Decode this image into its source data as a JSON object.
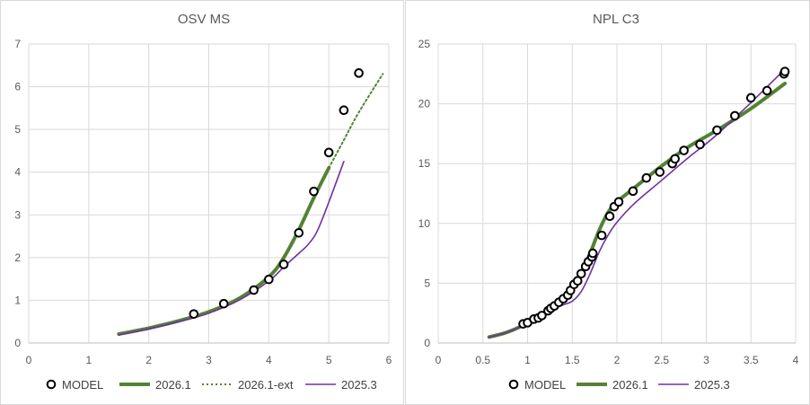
{
  "colors": {
    "model": "#000000",
    "c2026": "#548235",
    "c2025": "#7030a0",
    "grid": "#d9d9d9",
    "axis": "#bfbfbf",
    "text": "#595959"
  },
  "chart_data": [
    {
      "type": "scatter",
      "title": "OSV MS",
      "xlim": [
        0,
        6
      ],
      "ylim": [
        0,
        7
      ],
      "xticks": [
        "0",
        "1",
        "2",
        "3",
        "4",
        "5",
        "6"
      ],
      "yticks": [
        "0",
        "1",
        "2",
        "3",
        "4",
        "5",
        "6",
        "7"
      ],
      "grid": true,
      "legend": "bottom",
      "series": [
        {
          "name": "MODEL",
          "style": "marker",
          "x": [
            2.75,
            3.25,
            3.75,
            4.0,
            4.25,
            4.5,
            4.75,
            5.0,
            5.25,
            5.5
          ],
          "y": [
            0.68,
            0.92,
            1.24,
            1.49,
            1.84,
            2.58,
            3.55,
            4.46,
            5.45,
            6.32
          ]
        },
        {
          "name": "2026.1",
          "style": "thick",
          "x": [
            1.5,
            2.0,
            2.5,
            3.0,
            3.5,
            4.0,
            4.25,
            4.5,
            4.75,
            5.0
          ],
          "y": [
            0.21,
            0.35,
            0.52,
            0.73,
            1.04,
            1.55,
            2.0,
            2.65,
            3.4,
            4.1
          ]
        },
        {
          "name": "2026.1-ext",
          "style": "dotted",
          "x": [
            5.0,
            5.25,
            5.5,
            5.9
          ],
          "y": [
            4.1,
            4.75,
            5.4,
            6.3
          ]
        },
        {
          "name": "2025.3",
          "style": "thin",
          "x": [
            1.5,
            2.0,
            2.5,
            3.0,
            3.5,
            4.0,
            4.25,
            4.5,
            4.65,
            4.8,
            5.0,
            5.25
          ],
          "y": [
            0.19,
            0.33,
            0.5,
            0.7,
            1.0,
            1.45,
            1.78,
            2.1,
            2.3,
            2.6,
            3.3,
            4.25
          ]
        }
      ]
    },
    {
      "type": "scatter",
      "title": "NPL C3",
      "xlim": [
        0,
        4
      ],
      "ylim": [
        0,
        25
      ],
      "xticks": [
        "0",
        "0.5",
        "1",
        "1.5",
        "2",
        "2.5",
        "3",
        "3.5",
        "4"
      ],
      "yticks": [
        "0",
        "5",
        "10",
        "15",
        "20",
        "25"
      ],
      "grid": true,
      "legend": "bottom",
      "series": [
        {
          "name": "MODEL",
          "style": "marker",
          "x": [
            0.95,
            1.0,
            1.07,
            1.12,
            1.16,
            1.23,
            1.26,
            1.3,
            1.35,
            1.4,
            1.45,
            1.48,
            1.52,
            1.56,
            1.6,
            1.65,
            1.68,
            1.72,
            1.73,
            1.83,
            1.92,
            1.97,
            2.02,
            2.18,
            2.33,
            2.48,
            2.62,
            2.65,
            2.75,
            2.93,
            3.12,
            3.32,
            3.5,
            3.68,
            3.87,
            3.88
          ],
          "y": [
            1.6,
            1.7,
            2.0,
            2.1,
            2.3,
            2.7,
            2.9,
            3.1,
            3.4,
            3.7,
            4.0,
            4.4,
            4.9,
            5.2,
            5.8,
            6.4,
            6.8,
            7.2,
            7.5,
            9.0,
            10.6,
            11.4,
            11.8,
            12.7,
            13.8,
            14.3,
            15.0,
            15.4,
            16.1,
            16.6,
            17.8,
            19.0,
            20.5,
            21.1,
            22.5,
            22.7
          ]
        },
        {
          "name": "2026.1",
          "style": "thick",
          "x": [
            0.57,
            0.75,
            0.9,
            1.0,
            1.1,
            1.2,
            1.3,
            1.4,
            1.5,
            1.6,
            1.7,
            1.8,
            1.9,
            2.0,
            2.2,
            2.5,
            2.8,
            3.1,
            3.5,
            3.88
          ],
          "y": [
            0.5,
            0.85,
            1.3,
            1.7,
            2.1,
            2.5,
            3.0,
            3.6,
            4.5,
            5.8,
            7.5,
            9.4,
            10.9,
            11.8,
            13.0,
            14.8,
            16.4,
            17.7,
            19.6,
            21.7
          ]
        },
        {
          "name": "2025.3",
          "style": "thin",
          "x": [
            0.57,
            0.75,
            0.9,
            1.0,
            1.1,
            1.2,
            1.3,
            1.4,
            1.5,
            1.6,
            1.7,
            1.8,
            1.9,
            2.0,
            2.2,
            2.5,
            2.8,
            3.1,
            3.5,
            3.88
          ],
          "y": [
            0.5,
            0.85,
            1.3,
            1.7,
            2.1,
            2.5,
            2.9,
            3.2,
            3.5,
            4.3,
            5.8,
            7.6,
            9.0,
            10.1,
            11.7,
            13.6,
            15.5,
            17.3,
            20.1,
            22.9
          ]
        }
      ]
    }
  ]
}
